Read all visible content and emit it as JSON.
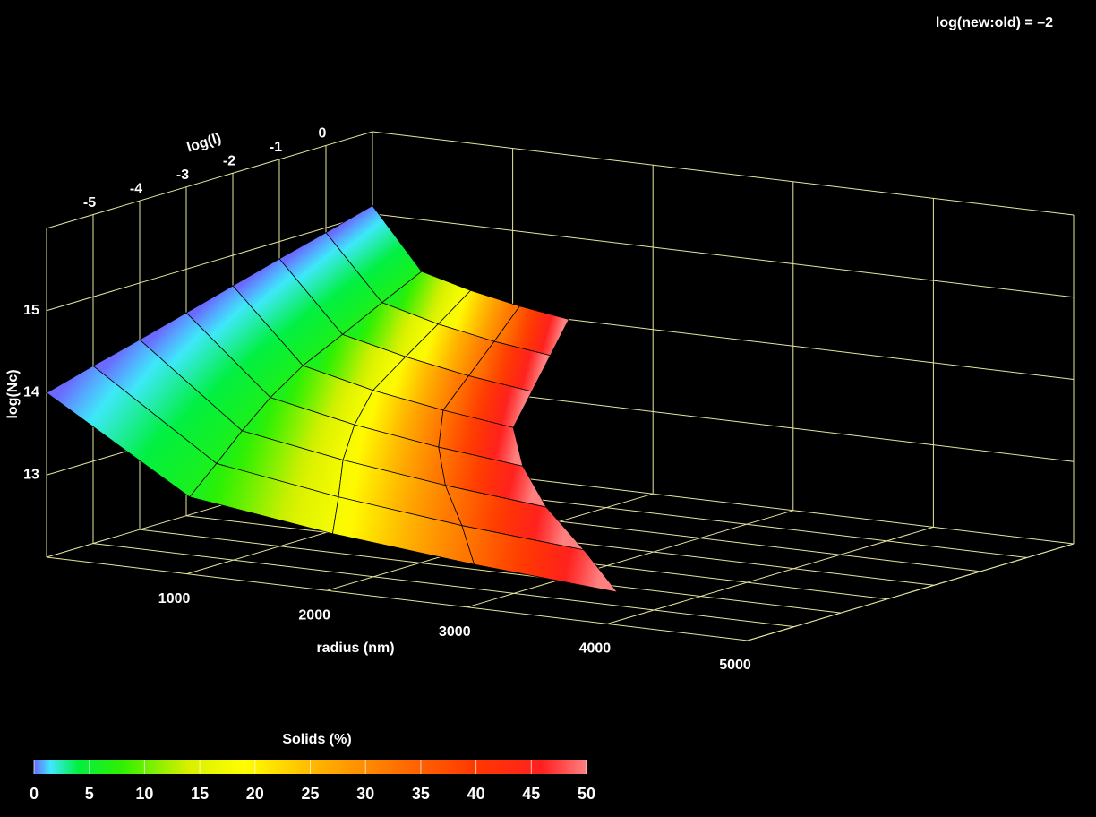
{
  "chart_data": {
    "type": "surface3d",
    "title": "log(new:old) = –2",
    "xlabel": "radius (nm)",
    "ylabel": "log(l)",
    "zlabel": "log(Nc)",
    "xlim": [
      0,
      5000
    ],
    "xticks": [
      1000,
      2000,
      3000,
      4000,
      5000
    ],
    "ylim": [
      -6,
      1
    ],
    "yticks": [
      -5,
      -4,
      -3,
      -2,
      -1,
      0
    ],
    "zlim": [
      12,
      16
    ],
    "zticks": [
      13,
      14,
      15
    ],
    "grid_color": "#e6e6a0",
    "surface": {
      "log_l": [
        -6,
        -5,
        -4,
        -3,
        -2,
        -1,
        0,
        1
      ],
      "radius": [
        [
          0,
          1020,
          2040,
          3050,
          4070
        ],
        [
          0,
          880,
          1750,
          2630,
          3500
        ],
        [
          0,
          730,
          1450,
          2180,
          2900
        ],
        [
          0,
          600,
          1200,
          1800,
          2400
        ],
        [
          0,
          500,
          1000,
          1500,
          2000
        ],
        [
          0,
          450,
          900,
          1350,
          1800
        ],
        [
          0,
          400,
          800,
          1200,
          1600
        ],
        [
          0,
          350,
          700,
          1050,
          1400
        ]
      ],
      "log_nc": [
        [
          14,
          12.94,
          12.7,
          12.53,
          12.4
        ],
        [
          14.16,
          13.15,
          12.92,
          12.75,
          12.63
        ],
        [
          14.31,
          13.35,
          13.14,
          12.98,
          12.86
        ],
        [
          14.47,
          13.56,
          13.35,
          13.2,
          13.09
        ],
        [
          14.63,
          13.76,
          13.56,
          13.42,
          13.31
        ],
        [
          14.79,
          13.96,
          13.78,
          13.64,
          13.54
        ],
        [
          14.94,
          14.17,
          13.99,
          13.86,
          13.77
        ],
        [
          15.1,
          14.37,
          14.21,
          14.09,
          14
        ]
      ],
      "solids": [
        [
          0,
          6.3,
          17.7,
          32.5,
          50
        ],
        [
          0,
          6.3,
          17.7,
          32.5,
          50
        ],
        [
          0,
          6.3,
          17.7,
          32.5,
          50
        ],
        [
          0,
          6.3,
          17.7,
          32.5,
          50
        ],
        [
          0,
          6.3,
          17.7,
          32.5,
          50
        ],
        [
          0,
          6.3,
          17.7,
          32.5,
          50
        ],
        [
          0,
          6.3,
          17.7,
          32.5,
          50
        ],
        [
          0,
          6.3,
          17.7,
          32.5,
          50
        ]
      ]
    },
    "colorbar": {
      "title": "Solids (%)",
      "lim": [
        0,
        50
      ],
      "ticks": [
        0,
        5,
        10,
        15,
        20,
        25,
        30,
        35,
        40,
        45,
        50
      ],
      "colormap": [
        {
          "at": 0,
          "color": "#6a6aff"
        },
        {
          "at": 1.5,
          "color": "#40e8ff"
        },
        {
          "at": 4,
          "color": "#00f040"
        },
        {
          "at": 8,
          "color": "#30f000"
        },
        {
          "at": 14,
          "color": "#d8f000"
        },
        {
          "at": 19,
          "color": "#ffff00"
        },
        {
          "at": 26,
          "color": "#ffb000"
        },
        {
          "at": 33,
          "color": "#ff7000"
        },
        {
          "at": 40,
          "color": "#ff3800"
        },
        {
          "at": 46,
          "color": "#ff2020"
        },
        {
          "at": 50,
          "color": "#ff8080"
        }
      ]
    }
  }
}
